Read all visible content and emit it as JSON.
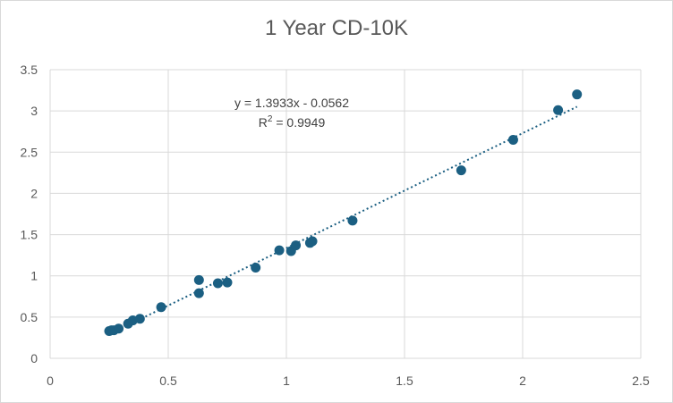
{
  "chart_data": {
    "type": "scatter",
    "title": "1 Year CD-10K",
    "xlabel": "",
    "ylabel": "",
    "xlim": [
      0,
      2.5
    ],
    "ylim": [
      0,
      3.5
    ],
    "xticks": [
      "0",
      "0.5",
      "1",
      "1.5",
      "2",
      "2.5"
    ],
    "yticks": [
      "0",
      "0.5",
      "1",
      "1.5",
      "2",
      "2.5",
      "3",
      "3.5"
    ],
    "grid": true,
    "legend": "none",
    "series": [
      {
        "color": "#1b5f82",
        "points": [
          [
            0.25,
            0.33
          ],
          [
            0.26,
            0.34
          ],
          [
            0.27,
            0.34
          ],
          [
            0.29,
            0.36
          ],
          [
            0.33,
            0.42
          ],
          [
            0.35,
            0.46
          ],
          [
            0.38,
            0.48
          ],
          [
            0.47,
            0.62
          ],
          [
            0.63,
            0.79
          ],
          [
            0.63,
            0.95
          ],
          [
            0.71,
            0.91
          ],
          [
            0.75,
            0.92
          ],
          [
            0.87,
            1.1
          ],
          [
            0.97,
            1.31
          ],
          [
            1.02,
            1.3
          ],
          [
            1.04,
            1.37
          ],
          [
            1.1,
            1.4
          ],
          [
            1.11,
            1.42
          ],
          [
            1.28,
            1.67
          ],
          [
            1.74,
            2.28
          ],
          [
            1.96,
            2.65
          ],
          [
            2.15,
            3.01
          ],
          [
            2.23,
            3.2
          ]
        ]
      }
    ],
    "trendline": {
      "type": "linear",
      "slope": 1.3933,
      "intercept": -0.0562,
      "x_range": [
        0.25,
        2.23
      ],
      "style": "dotted",
      "color": "#1b5f82",
      "equation_text": "y = 1.3933x - 0.0562",
      "r2_prefix": "R",
      "r2_sup": "2",
      "r2_value_text": " = 0.9949"
    }
  }
}
